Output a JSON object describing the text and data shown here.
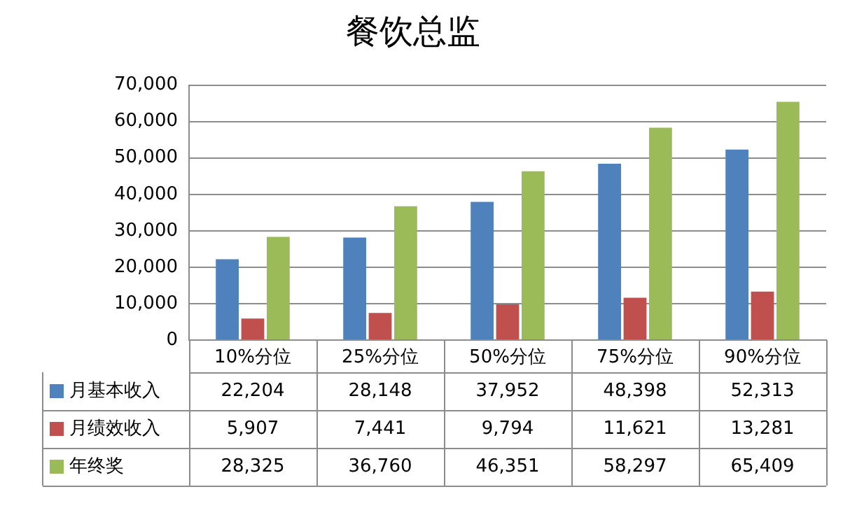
{
  "chart_data": {
    "type": "bar",
    "title": "餐饮总监",
    "categories": [
      "10%分位",
      "25%分位",
      "50%分位",
      "75%分位",
      "90%分位"
    ],
    "series": [
      {
        "name": "月基本收入",
        "color": "#4f81bd",
        "values": [
          22204,
          28148,
          37952,
          48398,
          52313
        ],
        "value_labels": [
          "22,204",
          "28,148",
          "37,952",
          "48,398",
          "52,313"
        ]
      },
      {
        "name": "月绩效收入",
        "color": "#c0504d",
        "values": [
          5907,
          7441,
          9794,
          11621,
          13281
        ],
        "value_labels": [
          "5,907",
          "7,441",
          "9,794",
          "11,621",
          "13,281"
        ]
      },
      {
        "name": "年终奖",
        "color": "#9bbb59",
        "values": [
          28325,
          36760,
          46351,
          58297,
          65409
        ],
        "value_labels": [
          "28,325",
          "36,760",
          "46,351",
          "58,297",
          "65,409"
        ]
      }
    ],
    "ylim": [
      0,
      70000
    ],
    "yticks": [
      {
        "value": 0,
        "label": "0"
      },
      {
        "value": 10000,
        "label": "10,000"
      },
      {
        "value": 20000,
        "label": "20,000"
      },
      {
        "value": 30000,
        "label": "30,000"
      },
      {
        "value": 40000,
        "label": "40,000"
      },
      {
        "value": 50000,
        "label": "50,000"
      },
      {
        "value": 60000,
        "label": "60,000"
      },
      {
        "value": 70000,
        "label": "70,000"
      }
    ],
    "grid": "y",
    "legend": "bottom"
  }
}
